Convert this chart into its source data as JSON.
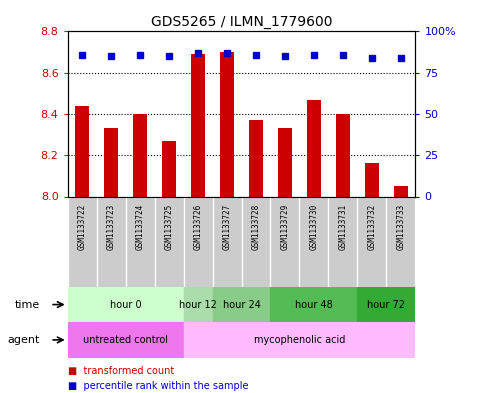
{
  "title": "GDS5265 / ILMN_1779600",
  "samples": [
    "GSM1133722",
    "GSM1133723",
    "GSM1133724",
    "GSM1133725",
    "GSM1133726",
    "GSM1133727",
    "GSM1133728",
    "GSM1133729",
    "GSM1133730",
    "GSM1133731",
    "GSM1133732",
    "GSM1133733"
  ],
  "bar_values": [
    8.44,
    8.33,
    8.4,
    8.27,
    8.69,
    8.7,
    8.37,
    8.33,
    8.47,
    8.4,
    8.16,
    8.05
  ],
  "percentile_values": [
    86,
    85,
    86,
    85,
    87,
    87,
    86,
    85,
    86,
    86,
    84,
    84
  ],
  "bar_bottom": 8.0,
  "ylim_left": [
    8.0,
    8.8
  ],
  "ylim_right": [
    0,
    100
  ],
  "yticks_left": [
    8.0,
    8.2,
    8.4,
    8.6,
    8.8
  ],
  "yticks_right": [
    0,
    25,
    50,
    75,
    100
  ],
  "ytick_labels_right": [
    "0",
    "25",
    "50",
    "75",
    "100%"
  ],
  "bar_color": "#cc0000",
  "percentile_color": "#0000cc",
  "dotted_lines": [
    8.2,
    8.4,
    8.6
  ],
  "time_groups": [
    {
      "label": "hour 0",
      "start": 0,
      "end": 3,
      "color": "#ccffcc"
    },
    {
      "label": "hour 12",
      "start": 4,
      "end": 4,
      "color": "#aaddaa"
    },
    {
      "label": "hour 24",
      "start": 5,
      "end": 6,
      "color": "#88cc88"
    },
    {
      "label": "hour 48",
      "start": 7,
      "end": 9,
      "color": "#55bb55"
    },
    {
      "label": "hour 72",
      "start": 10,
      "end": 11,
      "color": "#33aa33"
    }
  ],
  "agent_groups": [
    {
      "label": "untreated control",
      "start": 0,
      "end": 3,
      "color": "#ee77ee"
    },
    {
      "label": "mycophenolic acid",
      "start": 4,
      "end": 11,
      "color": "#ffbbff"
    }
  ],
  "ylabel_left_color": "#cc0000",
  "ylabel_right_color": "#0000cc",
  "sample_box_color": "#cccccc",
  "legend_bar_color": "#cc0000",
  "legend_pct_color": "#0000cc",
  "figsize": [
    4.83,
    3.93
  ],
  "dpi": 100
}
